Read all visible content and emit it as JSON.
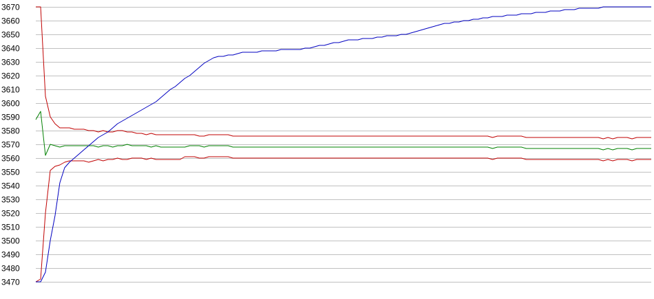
{
  "chart_data": {
    "type": "line",
    "title": "",
    "xlabel": "",
    "ylabel": "",
    "ylim": [
      3470,
      3670
    ],
    "yticks": [
      3470,
      3480,
      3490,
      3500,
      3510,
      3520,
      3530,
      3540,
      3550,
      3560,
      3570,
      3580,
      3590,
      3600,
      3610,
      3620,
      3630,
      3640,
      3650,
      3660,
      3670
    ],
    "grid": true,
    "legend": "none",
    "x": [
      1,
      2,
      3,
      4,
      5,
      6,
      7,
      8,
      9,
      10,
      11,
      12,
      13,
      14,
      15,
      16,
      17,
      18,
      19,
      20,
      21,
      22,
      23,
      24,
      25,
      26,
      27,
      28,
      29,
      30,
      31,
      32,
      33,
      34,
      35,
      36,
      37,
      38,
      39,
      40,
      41,
      42,
      43,
      44,
      45,
      46,
      47,
      48,
      49,
      50,
      51,
      52,
      53,
      54,
      55,
      56,
      57,
      58,
      59,
      60,
      61,
      62,
      63,
      64,
      65,
      66,
      67,
      68,
      69,
      70,
      71,
      72,
      73,
      74,
      75,
      76,
      77,
      78,
      79,
      80,
      81,
      82,
      83,
      84,
      85,
      86,
      87,
      88,
      89,
      90,
      91,
      92,
      93,
      94,
      95,
      96,
      97,
      98,
      99,
      100,
      101,
      102,
      103,
      104,
      105,
      106,
      107,
      108,
      109,
      110,
      111,
      112,
      113,
      114,
      115,
      116,
      117,
      118,
      119,
      120,
      121,
      122,
      123,
      124,
      125,
      126,
      127,
      128,
      129
    ],
    "series": [
      {
        "color": "#c00000",
        "values": [
          3670,
          3670,
          3605,
          3590,
          3585,
          3582,
          3582,
          3582,
          3581,
          3581,
          3581,
          3580,
          3580,
          3579,
          3580,
          3579,
          3579,
          3580,
          3580,
          3579,
          3579,
          3578,
          3578,
          3577,
          3578,
          3577,
          3577,
          3577,
          3577,
          3577,
          3577,
          3577,
          3577,
          3577,
          3576,
          3576,
          3577,
          3577,
          3577,
          3577,
          3577,
          3576,
          3576,
          3576,
          3576,
          3576,
          3576,
          3576,
          3576,
          3576,
          3576,
          3576,
          3576,
          3576,
          3576,
          3576,
          3576,
          3576,
          3576,
          3576,
          3576,
          3576,
          3576,
          3576,
          3576,
          3576,
          3576,
          3576,
          3576,
          3576,
          3576,
          3576,
          3576,
          3576,
          3576,
          3576,
          3576,
          3576,
          3576,
          3576,
          3576,
          3576,
          3576,
          3576,
          3576,
          3576,
          3576,
          3576,
          3576,
          3576,
          3576,
          3576,
          3576,
          3576,
          3576,
          3575,
          3576,
          3576,
          3576,
          3576,
          3576,
          3576,
          3575,
          3575,
          3575,
          3575,
          3575,
          3575,
          3575,
          3575,
          3575,
          3575,
          3575,
          3575,
          3575,
          3575,
          3575,
          3575,
          3574,
          3575,
          3574,
          3575,
          3575,
          3575,
          3574,
          3575,
          3575,
          3575,
          3575
        ]
      },
      {
        "color": "#008000",
        "values": [
          3588,
          3594,
          3562,
          3570,
          3569,
          3568,
          3569,
          3569,
          3569,
          3569,
          3569,
          3569,
          3569,
          3568,
          3569,
          3569,
          3568,
          3569,
          3569,
          3570,
          3569,
          3569,
          3569,
          3569,
          3568,
          3569,
          3568,
          3568,
          3568,
          3568,
          3568,
          3568,
          3569,
          3569,
          3569,
          3568,
          3569,
          3569,
          3569,
          3569,
          3569,
          3568,
          3568,
          3568,
          3568,
          3568,
          3568,
          3568,
          3568,
          3568,
          3568,
          3568,
          3568,
          3568,
          3568,
          3568,
          3568,
          3568,
          3568,
          3568,
          3568,
          3568,
          3568,
          3568,
          3568,
          3568,
          3568,
          3568,
          3568,
          3568,
          3568,
          3568,
          3568,
          3568,
          3568,
          3568,
          3568,
          3568,
          3568,
          3568,
          3568,
          3568,
          3568,
          3568,
          3568,
          3568,
          3568,
          3568,
          3568,
          3568,
          3568,
          3568,
          3568,
          3568,
          3568,
          3567,
          3568,
          3568,
          3568,
          3568,
          3568,
          3568,
          3567,
          3567,
          3567,
          3567,
          3567,
          3567,
          3567,
          3567,
          3567,
          3567,
          3567,
          3567,
          3567,
          3567,
          3567,
          3567,
          3566,
          3567,
          3566,
          3567,
          3567,
          3567,
          3566,
          3567,
          3567,
          3567,
          3567
        ]
      },
      {
        "color": "#c00000",
        "values": [
          3470,
          3472,
          3520,
          3551,
          3554,
          3555,
          3557,
          3558,
          3558,
          3558,
          3558,
          3557,
          3558,
          3559,
          3558,
          3559,
          3559,
          3560,
          3559,
          3559,
          3560,
          3560,
          3560,
          3559,
          3560,
          3559,
          3559,
          3559,
          3559,
          3559,
          3559,
          3561,
          3561,
          3561,
          3560,
          3560,
          3561,
          3561,
          3561,
          3561,
          3561,
          3560,
          3560,
          3560,
          3560,
          3560,
          3560,
          3560,
          3560,
          3560,
          3560,
          3560,
          3560,
          3560,
          3560,
          3560,
          3560,
          3560,
          3560,
          3560,
          3560,
          3560,
          3560,
          3560,
          3560,
          3560,
          3560,
          3560,
          3560,
          3560,
          3560,
          3560,
          3560,
          3560,
          3560,
          3560,
          3560,
          3560,
          3560,
          3560,
          3560,
          3560,
          3560,
          3560,
          3560,
          3560,
          3560,
          3560,
          3560,
          3560,
          3560,
          3560,
          3560,
          3560,
          3560,
          3559,
          3560,
          3560,
          3560,
          3560,
          3560,
          3560,
          3559,
          3559,
          3559,
          3559,
          3559,
          3559,
          3559,
          3559,
          3559,
          3559,
          3559,
          3559,
          3559,
          3559,
          3559,
          3559,
          3558,
          3559,
          3558,
          3559,
          3559,
          3559,
          3558,
          3559,
          3559,
          3559,
          3559
        ]
      },
      {
        "color": "#0000c0",
        "values": [
          3470,
          3470,
          3477,
          3500,
          3518,
          3542,
          3553,
          3557,
          3560,
          3563,
          3566,
          3569,
          3572,
          3575,
          3577,
          3579,
          3582,
          3585,
          3587,
          3589,
          3591,
          3593,
          3595,
          3597,
          3599,
          3601,
          3604,
          3607,
          3610,
          3612,
          3615,
          3618,
          3620,
          3623,
          3626,
          3629,
          3631,
          3633,
          3634,
          3634,
          3635,
          3635,
          3636,
          3637,
          3637,
          3637,
          3637,
          3638,
          3638,
          3638,
          3638,
          3639,
          3639,
          3639,
          3639,
          3639,
          3640,
          3640,
          3641,
          3642,
          3642,
          3643,
          3644,
          3644,
          3645,
          3646,
          3646,
          3646,
          3647,
          3647,
          3647,
          3648,
          3648,
          3649,
          3649,
          3649,
          3650,
          3650,
          3651,
          3652,
          3653,
          3654,
          3655,
          3656,
          3657,
          3658,
          3658,
          3659,
          3659,
          3660,
          3660,
          3661,
          3661,
          3662,
          3662,
          3663,
          3663,
          3663,
          3664,
          3664,
          3664,
          3665,
          3665,
          3665,
          3666,
          3666,
          3666,
          3667,
          3667,
          3667,
          3668,
          3668,
          3668,
          3669,
          3669,
          3669,
          3669,
          3669,
          3670,
          3670,
          3670,
          3670,
          3670,
          3670,
          3670,
          3670,
          3670,
          3670,
          3670
        ]
      }
    ]
  }
}
